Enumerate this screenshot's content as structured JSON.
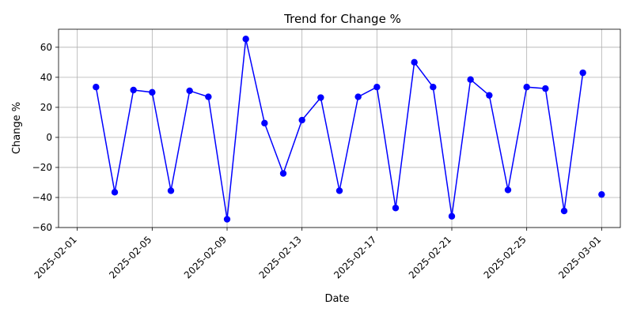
{
  "chart_data": {
    "type": "line",
    "title": "Trend for Change %",
    "xlabel": "Date",
    "ylabel": "Change %",
    "ylim": [
      -60,
      72
    ],
    "xlim": [
      "2025-01-31",
      "2025-03-02"
    ],
    "grid": true,
    "series_color": "#0000ff",
    "marker": "circle",
    "x_ticks": [
      "2025-02-01",
      "2025-02-05",
      "2025-02-09",
      "2025-02-13",
      "2025-02-17",
      "2025-02-21",
      "2025-02-25",
      "2025-03-01"
    ],
    "y_ticks": [
      -60,
      -40,
      -20,
      0,
      20,
      40,
      60
    ],
    "x": [
      "2025-02-02",
      "2025-02-03",
      "2025-02-04",
      "2025-02-05",
      "2025-02-06",
      "2025-02-07",
      "2025-02-08",
      "2025-02-09",
      "2025-02-10",
      "2025-02-11",
      "2025-02-12",
      "2025-02-13",
      "2025-02-14",
      "2025-02-15",
      "2025-02-16",
      "2025-02-17",
      "2025-02-18",
      "2025-02-19",
      "2025-02-20",
      "2025-02-21",
      "2025-02-22",
      "2025-02-23",
      "2025-02-24",
      "2025-02-25",
      "2025-02-26",
      "2025-02-27",
      "2025-02-28",
      "2025-03-01"
    ],
    "values": [
      33.5,
      -36.5,
      31.5,
      30,
      -35.5,
      31,
      27,
      -54.5,
      65.5,
      9.5,
      -24,
      11.5,
      26.5,
      -35.5,
      27,
      33.5,
      -47,
      50,
      33.5,
      -52.5,
      38.5,
      28,
      -35,
      33.5,
      32.5,
      -49,
      43,
      -38
    ],
    "gap_after_index": 26
  }
}
